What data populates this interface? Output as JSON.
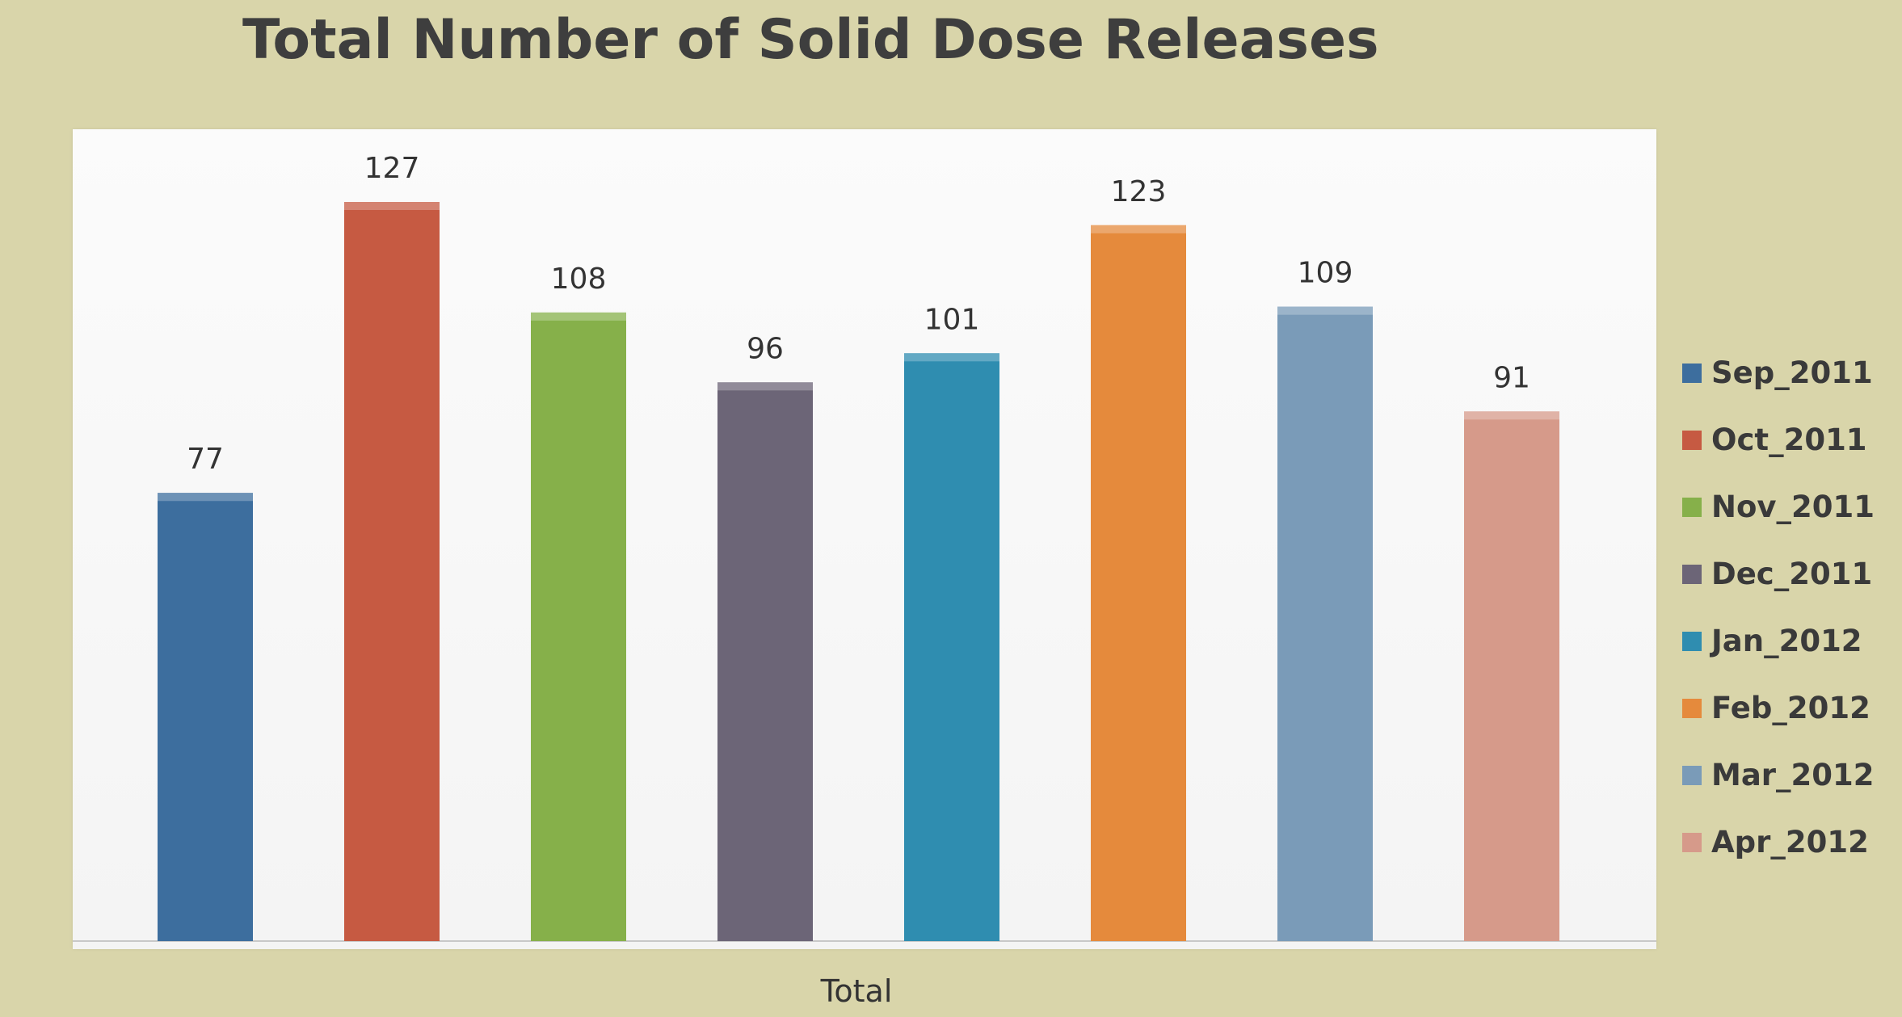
{
  "chart_data": {
    "type": "bar",
    "title": "Total Number of Solid Dose Releases",
    "xlabel": "Total",
    "ylabel": "",
    "categories": [
      "Total"
    ],
    "series": [
      {
        "name": "Sep_2011",
        "values": [
          77
        ],
        "color": "#3d6e9e"
      },
      {
        "name": "Oct_2011",
        "values": [
          127
        ],
        "color": "#c65a42"
      },
      {
        "name": "Nov_2011",
        "values": [
          108
        ],
        "color": "#86b04a"
      },
      {
        "name": "Dec_2011",
        "values": [
          96
        ],
        "color": "#6c6577"
      },
      {
        "name": "Jan_2012",
        "values": [
          101
        ],
        "color": "#2f8db0"
      },
      {
        "name": "Feb_2012",
        "values": [
          123
        ],
        "color": "#e58a3c"
      },
      {
        "name": "Mar_2012",
        "values": [
          109
        ],
        "color": "#7a9bb8"
      },
      {
        "name": "Apr_2012",
        "values": [
          91
        ],
        "color": "#d69a8a"
      }
    ],
    "ylim": [
      0,
      140
    ],
    "grid": false,
    "legend_position": "right"
  }
}
